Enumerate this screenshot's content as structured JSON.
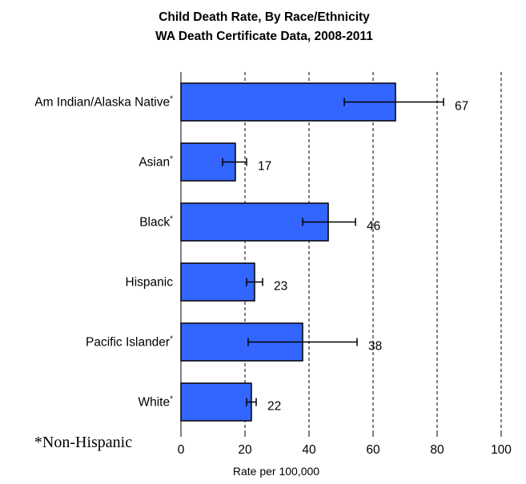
{
  "chart_data": {
    "type": "bar",
    "orientation": "horizontal",
    "title": [
      "Child Death Rate, By Race/Ethnicity",
      "WA Death Certificate Data, 2008-2011"
    ],
    "xlabel": "Rate per 100,000",
    "ylabel": "",
    "xlim": [
      0,
      100
    ],
    "xticks": [
      0,
      20,
      40,
      60,
      80,
      100
    ],
    "grid": "vertical dashed",
    "footnote": "*Non-Hispanic",
    "bar_color": "#3366ff",
    "categories": [
      {
        "label": "Am Indian/Alaska Native",
        "marker": "*",
        "value": 67,
        "value_label": "67",
        "ci": [
          51,
          82
        ]
      },
      {
        "label": "Asian",
        "marker": "*",
        "value": 17,
        "value_label": "17",
        "ci": [
          13,
          20.5
        ]
      },
      {
        "label": "Black",
        "marker": "*",
        "value": 46,
        "value_label": "46",
        "ci": [
          38,
          54.5
        ]
      },
      {
        "label": "Hispanic",
        "marker": "",
        "value": 23,
        "value_label": "23",
        "ci": [
          20.5,
          25.5
        ]
      },
      {
        "label": "Pacific Islander",
        "marker": "*",
        "value": 38,
        "value_label": "38",
        "ci": [
          21,
          55
        ]
      },
      {
        "label": "White",
        "marker": "*",
        "value": 22,
        "value_label": "22",
        "ci": [
          20.5,
          23.5
        ]
      }
    ]
  }
}
